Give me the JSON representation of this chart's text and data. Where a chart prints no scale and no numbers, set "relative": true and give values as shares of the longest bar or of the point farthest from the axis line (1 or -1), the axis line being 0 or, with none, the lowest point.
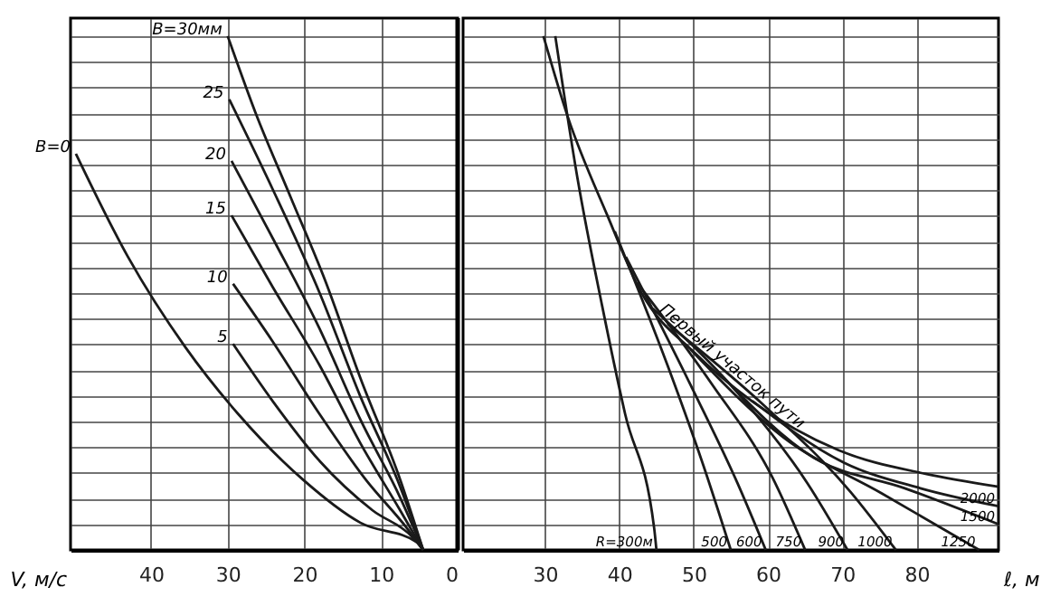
{
  "chart_data": [
    {
      "type": "line",
      "relative": true,
      "xlabel": "V, м/с",
      "xlim": [
        50.5,
        0
      ],
      "xticks": [
        40,
        30,
        20,
        10,
        0
      ],
      "grid": true,
      "line_style": "solid",
      "marker": "none",
      "ref_lines": [
        {
          "axis": "x",
          "value": 0,
          "label": null,
          "color": "#000000"
        }
      ],
      "series": [
        {
          "name": "B=0",
          "color": "#1a1a1a",
          "x": [
            49.8,
            43,
            35.5,
            28.6,
            20.2,
            12.7,
            5.2,
            4.5
          ],
          "values": [
            0.771,
            0.57,
            0.394,
            0.264,
            0.137,
            0.053,
            0.014,
            0
          ]
        },
        {
          "name": "5",
          "color": "#1a1a1a",
          "x": [
            29.3,
            24.1,
            18,
            11.1,
            5.9,
            4.5
          ],
          "values": [
            0.401,
            0.289,
            0.173,
            0.077,
            0.025,
            0
          ]
        },
        {
          "name": "10",
          "color": "#1a1a1a",
          "x": [
            29.3,
            24.1,
            18,
            12,
            6.6,
            4.5
          ],
          "values": [
            0.518,
            0.405,
            0.264,
            0.137,
            0.042,
            0
          ]
        },
        {
          "name": "15",
          "color": "#1a1a1a",
          "x": [
            29.5,
            24.1,
            18,
            12.7,
            7.5,
            4.5
          ],
          "values": [
            0.651,
            0.511,
            0.359,
            0.208,
            0.077,
            0
          ]
        },
        {
          "name": "20",
          "color": "#1a1a1a",
          "x": [
            29.5,
            24.1,
            18,
            12.7,
            7.5,
            4.5
          ],
          "values": [
            0.757,
            0.606,
            0.43,
            0.254,
            0.102,
            0
          ]
        },
        {
          "name": "25",
          "color": "#1a1a1a",
          "x": [
            29.8,
            24.1,
            18,
            12.7,
            7.5,
            4.5
          ],
          "values": [
            0.877,
            0.701,
            0.5,
            0.299,
            0.123,
            0
          ]
        },
        {
          "name": "B=30мм",
          "color": "#1a1a1a",
          "x": [
            30,
            26.4,
            21.8,
            17.3,
            12.7,
            7.5,
            4.5
          ],
          "values": [
            1.0,
            0.852,
            0.687,
            0.525,
            0.335,
            0.137,
            0
          ]
        }
      ]
    },
    {
      "type": "line",
      "relative": true,
      "xlabel": "ℓ, м",
      "xlim": [
        19,
        91
      ],
      "xticks": [
        30,
        40,
        50,
        60,
        70,
        80
      ],
      "grid": true,
      "line_style": "solid",
      "marker": "none",
      "series": [
        {
          "name": "R=300м",
          "color": "#1a1a1a",
          "x": [
            31.4,
            34.4,
            37.7,
            40.8,
            44.7,
            45.0
          ],
          "values": [
            1.0,
            0.722,
            0.475,
            0.264,
            0.042,
            0
          ]
        },
        {
          "name": "Первый участок пути",
          "color": "#1a1a1a",
          "x": [
            29.8,
            33.1,
            38.4,
            43.0,
            50.1,
            57.9,
            69.5,
            81.2,
            91
          ],
          "values": [
            1.0,
            0.842,
            0.651,
            0.5,
            0.384,
            0.289,
            0.194,
            0.148,
            0.123
          ]
        },
        {
          "name": "500",
          "color": "#1a1a1a",
          "x": [
            39.4,
            46.5,
            51.3,
            55.0
          ],
          "values": [
            0.62,
            0.359,
            0.165,
            0
          ]
        },
        {
          "name": "600",
          "color": "#1a1a1a",
          "x": [
            40.9,
            50.1,
            55.9,
            59.7
          ],
          "values": [
            0.57,
            0.306,
            0.13,
            0
          ]
        },
        {
          "name": "750",
          "color": "#1a1a1a",
          "x": [
            42.4,
            52.4,
            60.6,
            65.0
          ],
          "values": [
            0.52,
            0.324,
            0.141,
            0
          ]
        },
        {
          "name": "900",
          "color": "#1a1a1a",
          "x": [
            44.5,
            55.9,
            65.3,
            70.7
          ],
          "values": [
            0.47,
            0.306,
            0.13,
            0
          ]
        },
        {
          "name": "1000",
          "color": "#1a1a1a",
          "x": [
            46.5,
            59.4,
            71.1,
            77.2
          ],
          "values": [
            0.44,
            0.282,
            0.113,
            0
          ]
        },
        {
          "name": "1250",
          "color": "#1a1a1a",
          "x": [
            49.6,
            62.0,
            75.3,
            88.4
          ],
          "values": [
            0.39,
            0.22,
            0.11,
            0
          ]
        },
        {
          "name": "1500",
          "color": "#1a1a1a",
          "x": [
            53.7,
            66.1,
            78.4,
            91
          ],
          "values": [
            0.34,
            0.18,
            0.12,
            0.05
          ]
        },
        {
          "name": "2000",
          "color": "#1a1a1a",
          "x": [
            57.9,
            70.2,
            80.5,
            91
          ],
          "values": [
            0.29,
            0.17,
            0.12,
            0.085
          ]
        }
      ]
    }
  ]
}
